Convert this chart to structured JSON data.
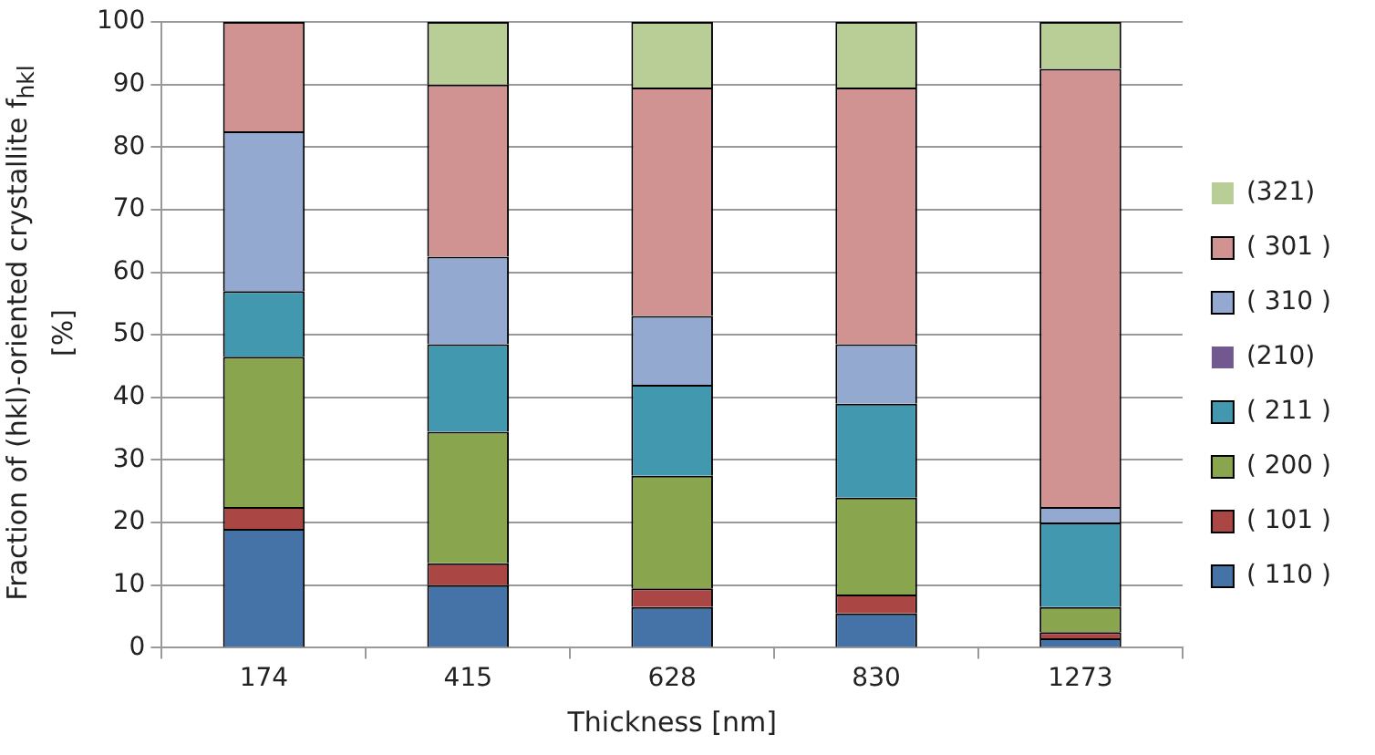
{
  "chart_data": {
    "type": "bar",
    "stacked": true,
    "xlabel": "Thickness [nm]",
    "ylabel": "Fraction of (hkl)-oriented crystallite f$_{hkl}$ [%]",
    "categories": [
      "174",
      "415",
      "628",
      "830",
      "1273"
    ],
    "ylim": [
      0,
      100
    ],
    "yticks": [
      0,
      10,
      20,
      30,
      40,
      50,
      60,
      70,
      80,
      90,
      100
    ],
    "grid": "y",
    "legend": "right",
    "series": [
      {
        "name": "( 110 )",
        "color": "#4572a7",
        "values": [
          19,
          10,
          6.5,
          5.5,
          1.5
        ]
      },
      {
        "name": "( 101 )",
        "color": "#aa4643",
        "values": [
          3.5,
          3.5,
          3,
          3,
          1
        ]
      },
      {
        "name": "( 200 )",
        "color": "#89a54e",
        "values": [
          24,
          21,
          18,
          15.5,
          4
        ]
      },
      {
        "name": "( 211 )",
        "color": "#4198af",
        "values": [
          10.5,
          14,
          14.5,
          15,
          13.5
        ]
      },
      {
        "name": "(210)",
        "color": "#71588f",
        "values": [
          0,
          0,
          0,
          0,
          0
        ]
      },
      {
        "name": "( 310 )",
        "color": "#93a9cf",
        "values": [
          25.5,
          14,
          11,
          9.5,
          2.5
        ]
      },
      {
        "name": "( 301 )",
        "color": "#d19392",
        "values": [
          17.5,
          27.5,
          36.5,
          41,
          70
        ]
      },
      {
        "name": "(321)",
        "color": "#b9cd96",
        "values": [
          0,
          10,
          10.5,
          10.5,
          7.5
        ]
      }
    ]
  }
}
